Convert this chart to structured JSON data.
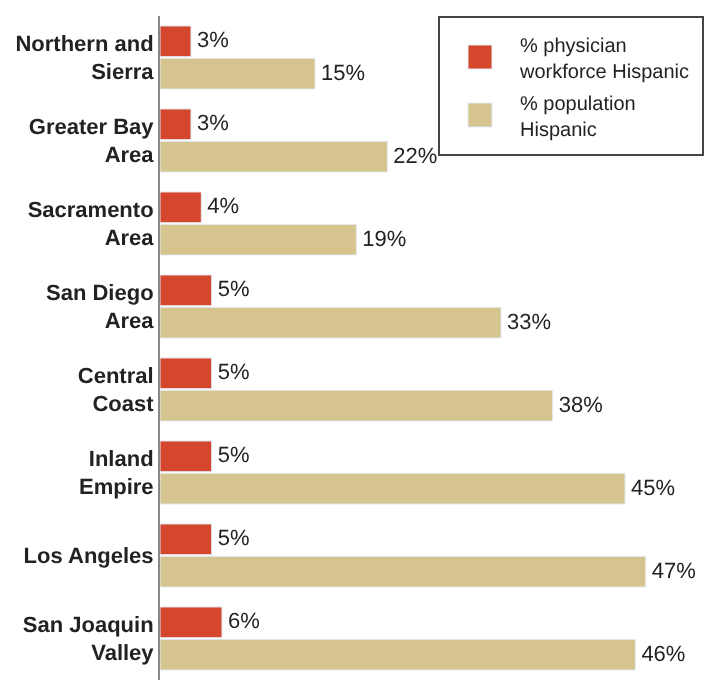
{
  "chart_data": {
    "type": "bar",
    "orientation": "horizontal",
    "categories": [
      "Northern and Sierra",
      "Greater Bay Area",
      "Sacramento Area",
      "San Diego Area",
      "Central Coast",
      "Inland Empire",
      "Los Angeles",
      "San Joaquin Valley"
    ],
    "series": [
      {
        "name": "% physician workforce Hispanic",
        "color": "#d5472c",
        "values": [
          3,
          3,
          4,
          5,
          5,
          5,
          5,
          6
        ],
        "value_labels": [
          "3%",
          "3%",
          "4%",
          "5%",
          "5%",
          "5%",
          "5%",
          "6%"
        ]
      },
      {
        "name": "% population Hispanic",
        "color": "#d6c48f",
        "values": [
          15,
          22,
          19,
          33,
          38,
          45,
          47,
          46
        ],
        "value_labels": [
          "15%",
          "22%",
          "19%",
          "33%",
          "38%",
          "45%",
          "47%",
          "46%"
        ]
      }
    ],
    "legend": "top right"
  }
}
